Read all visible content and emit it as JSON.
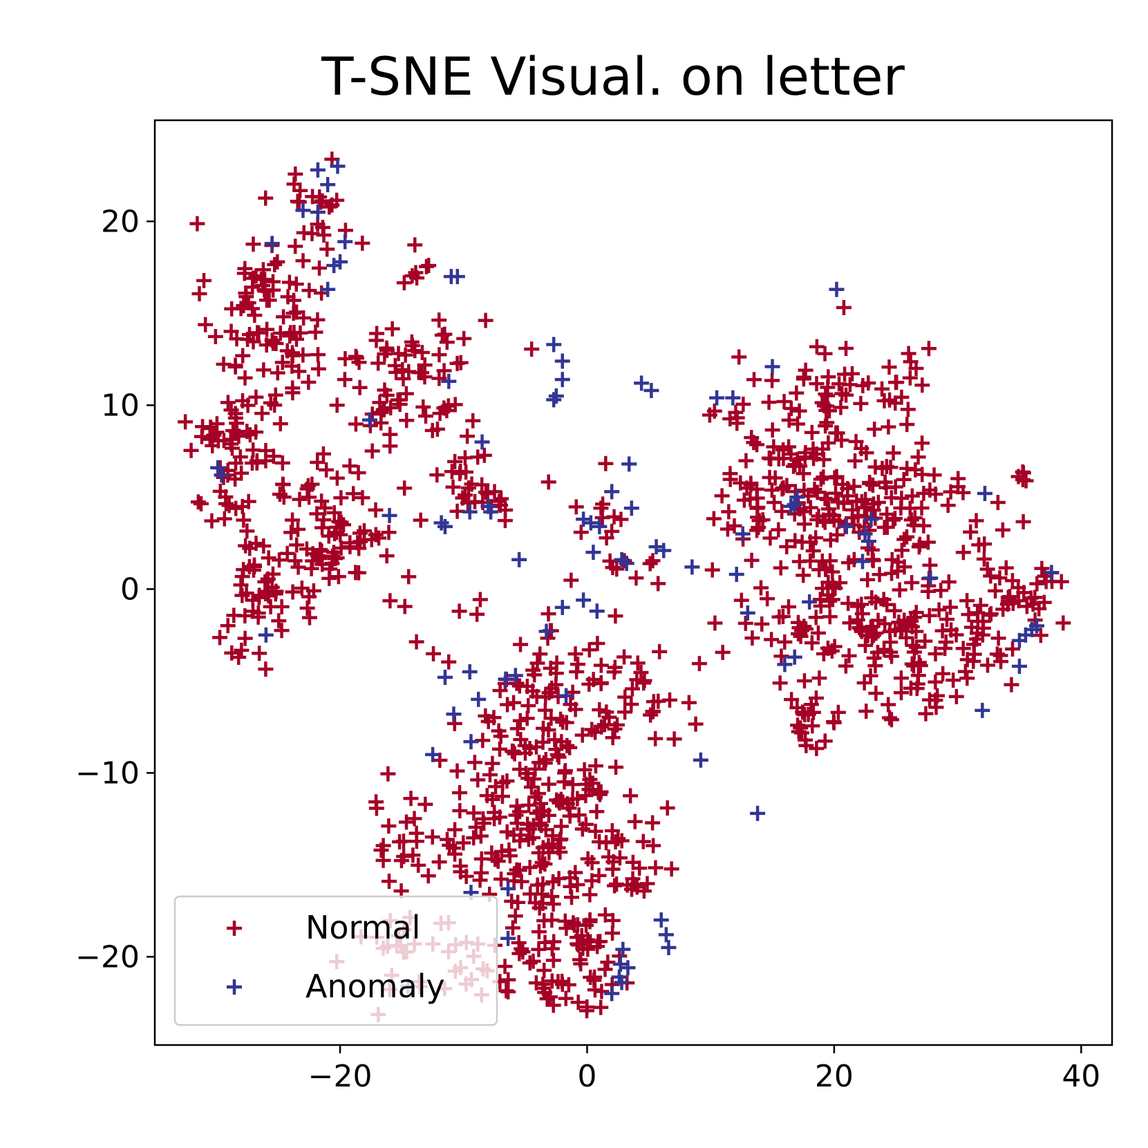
{
  "chart_data": {
    "type": "scatter",
    "title": "T-SNE Visual. on letter",
    "xlabel": "",
    "ylabel": "",
    "xlim": [
      -35,
      42.5
    ],
    "ylim": [
      -24.8,
      25.5
    ],
    "xticks": [
      -20,
      0,
      20,
      40
    ],
    "yticks": [
      20,
      10,
      0,
      -10,
      -20
    ],
    "xtick_labels": [
      "−20",
      "0",
      "20",
      "40"
    ],
    "ytick_labels": [
      "20",
      "10",
      "0",
      "−10",
      "−20"
    ],
    "marker": "+",
    "grid": false,
    "legend_position": "lower-left",
    "series": [
      {
        "name": "Normal",
        "color": "#a50026",
        "clusters": [
          {
            "cx": -26.0,
            "cy": 15.2,
            "sx": 2.3,
            "sy": 2.4,
            "n": 85
          },
          {
            "cx": -21.5,
            "cy": 21.0,
            "sx": 1.8,
            "sy": 1.2,
            "n": 20
          },
          {
            "cx": -14.8,
            "cy": 11.5,
            "sx": 3.2,
            "sy": 2.0,
            "n": 75
          },
          {
            "cx": -28.2,
            "cy": 8.3,
            "sx": 2.0,
            "sy": 1.4,
            "n": 50
          },
          {
            "cx": -29.0,
            "cy": 4.6,
            "sx": 1.0,
            "sy": 1.3,
            "n": 14
          },
          {
            "cx": -20.6,
            "cy": 3.0,
            "sx": 2.8,
            "sy": 2.3,
            "n": 90
          },
          {
            "cx": -27.0,
            "cy": -0.7,
            "sx": 1.7,
            "sy": 1.7,
            "n": 40
          },
          {
            "cx": -13.3,
            "cy": 17.6,
            "sx": 0.6,
            "sy": 0.4,
            "n": 6
          },
          {
            "cx": -8.5,
            "cy": 5.8,
            "sx": 1.5,
            "sy": 1.3,
            "n": 28
          },
          {
            "cx": 1.5,
            "cy": 3.3,
            "sx": 1.8,
            "sy": 1.6,
            "n": 16
          },
          {
            "cx": 5.0,
            "cy": 0.6,
            "sx": 0.6,
            "sy": 0.6,
            "n": 4
          },
          {
            "cx": -3.0,
            "cy": -5.0,
            "sx": 4.0,
            "sy": 2.0,
            "n": 60
          },
          {
            "cx": 3.5,
            "cy": -6.0,
            "sx": 1.8,
            "sy": 1.5,
            "n": 30
          },
          {
            "cx": -4.5,
            "cy": -10.0,
            "sx": 4.0,
            "sy": 1.8,
            "n": 75
          },
          {
            "cx": -14.5,
            "cy": -13.5,
            "sx": 2.0,
            "sy": 1.2,
            "n": 25
          },
          {
            "cx": -6.0,
            "cy": -13.8,
            "sx": 3.0,
            "sy": 1.5,
            "n": 60
          },
          {
            "cx": 1.0,
            "cy": -13.0,
            "sx": 2.5,
            "sy": 1.5,
            "n": 40
          },
          {
            "cx": 4.0,
            "cy": -15.5,
            "sx": 1.0,
            "sy": 1.0,
            "n": 14
          },
          {
            "cx": -1.5,
            "cy": -18.0,
            "sx": 2.2,
            "sy": 1.2,
            "n": 40
          },
          {
            "cx": -3.0,
            "cy": -21.0,
            "sx": 2.5,
            "sy": 1.0,
            "n": 30
          },
          {
            "cx": 1.0,
            "cy": -21.5,
            "sx": 1.2,
            "sy": 0.8,
            "n": 12
          },
          {
            "cx": -14.5,
            "cy": -19.5,
            "sx": 2.5,
            "sy": 1.3,
            "n": 28
          },
          {
            "cx": -8.0,
            "cy": -20.5,
            "sx": 1.2,
            "sy": 1.0,
            "n": 10
          },
          {
            "cx": -6.5,
            "cy": -16.5,
            "sx": 1.2,
            "sy": 0.8,
            "n": 6
          },
          {
            "cx": 19.5,
            "cy": 10.8,
            "sx": 3.5,
            "sy": 1.6,
            "n": 35
          },
          {
            "cx": 26.0,
            "cy": 11.2,
            "sx": 1.5,
            "sy": 1.2,
            "n": 10
          },
          {
            "cx": 11.5,
            "cy": 10.0,
            "sx": 0.8,
            "sy": 0.8,
            "n": 6
          },
          {
            "cx": 18.0,
            "cy": 6.5,
            "sx": 3.5,
            "sy": 2.0,
            "n": 80
          },
          {
            "cx": 14.5,
            "cy": 4.5,
            "sx": 2.0,
            "sy": 1.3,
            "n": 25
          },
          {
            "cx": 21.5,
            "cy": 2.5,
            "sx": 3.0,
            "sy": 2.3,
            "n": 80
          },
          {
            "cx": 25.5,
            "cy": 4.5,
            "sx": 2.5,
            "sy": 2.0,
            "n": 40
          },
          {
            "cx": 19.0,
            "cy": -1.5,
            "sx": 4.0,
            "sy": 1.5,
            "n": 60
          },
          {
            "cx": 26.0,
            "cy": -1.8,
            "sx": 2.5,
            "sy": 1.5,
            "n": 40
          },
          {
            "cx": 27.0,
            "cy": -5.5,
            "sx": 2.5,
            "sy": 1.0,
            "n": 25
          },
          {
            "cx": 31.5,
            "cy": -2.5,
            "sx": 2.0,
            "sy": 1.5,
            "n": 30
          },
          {
            "cx": 35.5,
            "cy": -0.3,
            "sx": 2.0,
            "sy": 0.9,
            "n": 32
          },
          {
            "cx": 33.0,
            "cy": 3.5,
            "sx": 1.2,
            "sy": 0.8,
            "n": 8
          },
          {
            "cx": 35.5,
            "cy": 6.0,
            "sx": 0.5,
            "sy": 0.5,
            "n": 5
          },
          {
            "cx": 18.0,
            "cy": -7.5,
            "sx": 1.2,
            "sy": 0.8,
            "n": 22
          }
        ]
      },
      {
        "name": "Anomaly",
        "color": "#313695",
        "points": [
          [
            -21.8,
            22.8
          ],
          [
            -20.2,
            23.0
          ],
          [
            -21.0,
            22.0
          ],
          [
            -23.0,
            20.6
          ],
          [
            -21.8,
            20.5
          ],
          [
            -25.5,
            18.8
          ],
          [
            -19.6,
            18.9
          ],
          [
            -20.0,
            17.8
          ],
          [
            -20.5,
            17.6
          ],
          [
            -11.0,
            17.0
          ],
          [
            -10.5,
            17.0
          ],
          [
            -21.0,
            16.3
          ],
          [
            -11.2,
            11.3
          ],
          [
            -17.6,
            9.2
          ],
          [
            -29.9,
            6.6
          ],
          [
            -29.6,
            6.2
          ],
          [
            -8.5,
            8.0
          ],
          [
            -16.0,
            4.0
          ],
          [
            -11.8,
            3.6
          ],
          [
            -11.5,
            3.4
          ],
          [
            -9.5,
            4.2
          ],
          [
            -8.0,
            4.5
          ],
          [
            -7.8,
            4.2
          ],
          [
            -5.5,
            1.6
          ],
          [
            -2.7,
            13.3
          ],
          [
            -2.0,
            12.4
          ],
          [
            -2.0,
            11.4
          ],
          [
            -2.5,
            10.5
          ],
          [
            -2.7,
            10.3
          ],
          [
            4.4,
            11.2
          ],
          [
            5.2,
            10.8
          ],
          [
            20.2,
            16.3
          ],
          [
            15.0,
            12.1
          ],
          [
            10.5,
            10.4
          ],
          [
            11.8,
            10.4
          ],
          [
            2.0,
            5.3
          ],
          [
            3.4,
            6.8
          ],
          [
            3.6,
            4.4
          ],
          [
            -0.3,
            3.8
          ],
          [
            0.3,
            3.6
          ],
          [
            1.0,
            3.4
          ],
          [
            0.5,
            2.0
          ],
          [
            2.8,
            1.6
          ],
          [
            3.2,
            1.4
          ],
          [
            5.6,
            2.3
          ],
          [
            6.2,
            2.1
          ],
          [
            8.5,
            1.2
          ],
          [
            12.1,
            0.8
          ],
          [
            12.6,
            3.0
          ],
          [
            13.0,
            -1.3
          ],
          [
            16.5,
            4.5
          ],
          [
            17.0,
            5.0
          ],
          [
            16.8,
            4.6
          ],
          [
            21.0,
            3.4
          ],
          [
            22.5,
            3.0
          ],
          [
            23.0,
            3.8
          ],
          [
            22.8,
            2.6
          ],
          [
            22.3,
            1.5
          ],
          [
            27.8,
            0.6
          ],
          [
            32.2,
            5.2
          ],
          [
            18.0,
            -0.7
          ],
          [
            16.0,
            -4.1
          ],
          [
            16.8,
            -3.7
          ],
          [
            37.6,
            0.9
          ],
          [
            35.5,
            -2.5
          ],
          [
            36.0,
            -2.2
          ],
          [
            36.4,
            -2.0
          ],
          [
            35.0,
            -2.8
          ],
          [
            35.0,
            -4.2
          ],
          [
            32.0,
            -6.6
          ],
          [
            -26.0,
            -2.5
          ],
          [
            -0.3,
            -0.6
          ],
          [
            0.8,
            -1.2
          ],
          [
            -2.0,
            -1.0
          ],
          [
            -3.3,
            -2.3
          ],
          [
            -11.5,
            -4.8
          ],
          [
            -9.5,
            -4.5
          ],
          [
            -6.6,
            -4.9
          ],
          [
            -5.8,
            -4.7
          ],
          [
            -8.8,
            -6.0
          ],
          [
            -10.8,
            -6.8
          ],
          [
            -9.4,
            -8.3
          ],
          [
            -12.5,
            -9.0
          ],
          [
            -1.7,
            -5.8
          ],
          [
            9.2,
            -9.3
          ],
          [
            13.8,
            -12.2
          ],
          [
            -9.4,
            -16.5
          ],
          [
            -6.4,
            -16.3
          ],
          [
            -6.4,
            -19.0
          ],
          [
            -14.5,
            -21.6
          ],
          [
            6.0,
            -18.0
          ],
          [
            6.4,
            -18.8
          ],
          [
            6.6,
            -19.5
          ],
          [
            2.9,
            -19.6
          ],
          [
            2.7,
            -20.4
          ],
          [
            3.3,
            -20.6
          ],
          [
            2.6,
            -21.1
          ],
          [
            2.8,
            -21.4
          ],
          [
            2.0,
            -22.0
          ]
        ]
      }
    ]
  }
}
